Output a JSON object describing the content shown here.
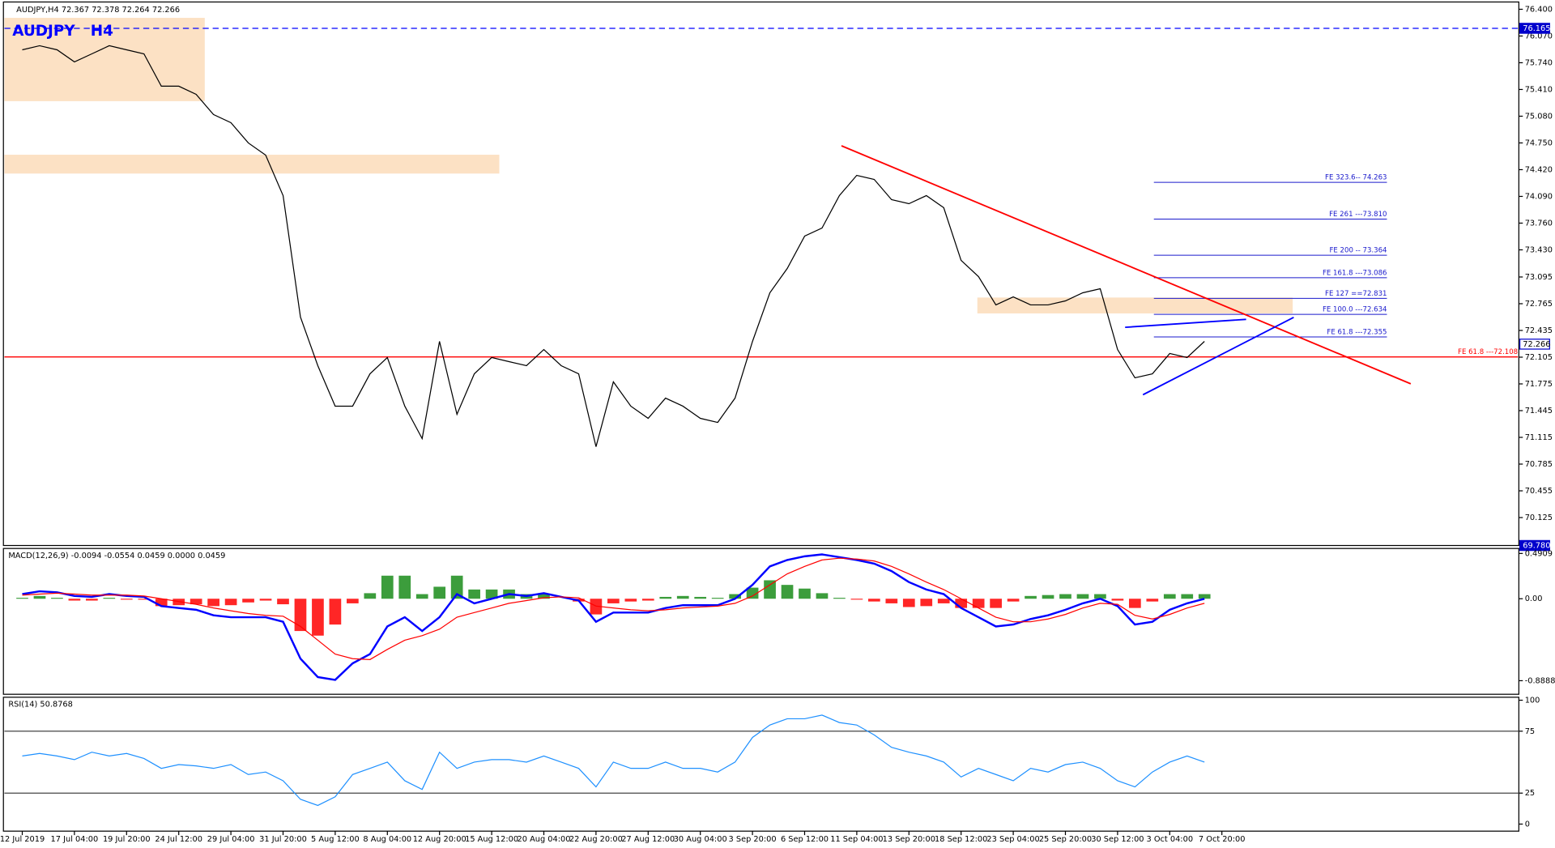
{
  "chart_data": [
    {
      "type": "line",
      "title": "AUDJPY,H4  72.367 72.378 72.264 72.266",
      "subtitle": "AUDJPY   H4",
      "series": [
        {
          "name": "AUDJPY",
          "color": "#000000",
          "values": [
            75.9,
            75.95,
            75.9,
            75.75,
            75.85,
            75.95,
            75.9,
            75.85,
            75.45,
            75.45,
            75.35,
            75.1,
            75.0,
            74.75,
            74.6,
            74.1,
            72.6,
            72.0,
            71.5,
            71.5,
            71.9,
            72.1,
            71.5,
            71.1,
            72.3,
            71.4,
            71.9,
            72.1,
            72.05,
            72.0,
            72.2,
            72.0,
            71.9,
            71.0,
            71.8,
            71.5,
            71.35,
            71.6,
            71.5,
            71.35,
            71.3,
            71.6,
            72.3,
            72.9,
            73.2,
            73.6,
            73.7,
            74.1,
            74.35,
            74.3,
            74.05,
            74.0,
            74.1,
            73.95,
            73.3,
            73.1,
            72.75,
            72.85,
            72.75,
            72.75,
            72.8,
            72.9,
            72.95,
            72.2,
            71.85,
            71.9,
            72.15,
            72.1,
            72.3,
            null
          ]
        }
      ],
      "ylim": [
        69.78,
        76.49
      ],
      "yticks": [
        {
          "value": 76.4,
          "label": "76.400"
        },
        {
          "value": 76.07,
          "label": "76.070"
        },
        {
          "value": 75.74,
          "label": "75.740"
        },
        {
          "value": 75.41,
          "label": "75.410"
        },
        {
          "value": 75.08,
          "label": "75.080"
        },
        {
          "value": 74.75,
          "label": "74.750"
        },
        {
          "value": 74.42,
          "label": "74.420"
        },
        {
          "value": 74.09,
          "label": "74.090"
        },
        {
          "value": 73.76,
          "label": "73.760"
        },
        {
          "value": 73.43,
          "label": "73.430"
        },
        73.095,
        72.765,
        72.435,
        72.105,
        71.775,
        71.445,
        71.115,
        70.785,
        70.455,
        70.125
      ],
      "price_tags": [
        76.165,
        72.266,
        {
          "value": 69.78,
          "label": "69.780"
        }
      ],
      "levels": [
        {
          "label": "FE 323.6-- 74.263",
          "value": 74.263,
          "color": "#1a1acc"
        },
        {
          "label": "FE 261 ---73.810",
          "value": 73.81,
          "color": "#1a1acc"
        },
        {
          "label": "FE 200 -- 73.364",
          "value": 73.364,
          "color": "#1a1acc"
        },
        {
          "label": "FE 161.8 ---73.086",
          "value": 73.086,
          "color": "#1a1acc"
        },
        {
          "label": "FE 127 ==72.831",
          "value": 72.831,
          "color": "#1a1acc"
        },
        {
          "label": "FE 100.0 ---72.634",
          "value": 72.634,
          "color": "#1a1acc"
        },
        {
          "label": "FE 61.8 ---72.355",
          "value": 72.355,
          "color": "#1a1acc"
        },
        {
          "label": "FE 61.8 ---72.108",
          "value": 72.108,
          "color": "#ff0000"
        }
      ]
    },
    {
      "type": "macd",
      "title": "MACD(12,26,9) -0.0094 -0.0554 0.0459 0.0000 0.0459",
      "series": [
        {
          "name": "MACD",
          "color": "#0000ff",
          "values": [
            0.05,
            0.08,
            0.07,
            0.03,
            0.02,
            0.05,
            0.03,
            0.02,
            -0.08,
            -0.1,
            -0.12,
            -0.18,
            -0.2,
            -0.2,
            -0.2,
            -0.25,
            -0.65,
            -0.85,
            -0.88,
            -0.7,
            -0.6,
            -0.3,
            -0.2,
            -0.35,
            -0.2,
            0.05,
            -0.05,
            0.0,
            0.05,
            0.03,
            0.06,
            0.02,
            -0.02,
            -0.25,
            -0.15,
            -0.15,
            -0.15,
            -0.1,
            -0.07,
            -0.07,
            -0.07,
            0.0,
            0.15,
            0.35,
            0.42,
            0.46,
            0.48,
            0.45,
            0.42,
            0.38,
            0.3,
            0.18,
            0.1,
            0.05,
            -0.1,
            -0.2,
            -0.3,
            -0.28,
            -0.22,
            -0.18,
            -0.12,
            -0.05,
            0.0,
            -0.08,
            -0.28,
            -0.25,
            -0.12,
            -0.05,
            0.0,
            null
          ]
        },
        {
          "name": "Signal",
          "color": "#ff0000",
          "values": [
            0.04,
            0.05,
            0.06,
            0.05,
            0.04,
            0.04,
            0.04,
            0.03,
            0.0,
            -0.03,
            -0.06,
            -0.1,
            -0.13,
            -0.16,
            -0.18,
            -0.19,
            -0.3,
            -0.45,
            -0.6,
            -0.65,
            -0.66,
            -0.55,
            -0.45,
            -0.4,
            -0.33,
            -0.2,
            -0.15,
            -0.1,
            -0.05,
            -0.02,
            0.01,
            0.02,
            0.01,
            -0.08,
            -0.1,
            -0.12,
            -0.13,
            -0.12,
            -0.1,
            -0.09,
            -0.08,
            -0.05,
            0.03,
            0.15,
            0.27,
            0.35,
            0.42,
            0.44,
            0.43,
            0.41,
            0.35,
            0.27,
            0.18,
            0.1,
            0.0,
            -0.1,
            -0.2,
            -0.25,
            -0.25,
            -0.22,
            -0.17,
            -0.1,
            -0.05,
            -0.06,
            -0.18,
            -0.22,
            -0.17,
            -0.1,
            -0.05,
            null
          ]
        }
      ],
      "histogram": {
        "positive_color": "#1a8c1a",
        "negative_color": "#ff0000",
        "values": [
          0.01,
          0.03,
          0.01,
          -0.02,
          -0.02,
          0.01,
          -0.01,
          -0.01,
          -0.08,
          -0.07,
          -0.06,
          -0.08,
          -0.07,
          -0.04,
          -0.02,
          -0.06,
          -0.35,
          -0.4,
          -0.28,
          -0.05,
          0.06,
          0.25,
          0.25,
          0.05,
          0.13,
          0.25,
          0.1,
          0.1,
          0.1,
          0.05,
          0.05,
          0,
          -0.03,
          -0.17,
          -0.05,
          -0.03,
          -0.02,
          0.02,
          0.03,
          0.02,
          0.01,
          0.05,
          0.12,
          0.2,
          0.15,
          0.11,
          0.06,
          0.01,
          -0.01,
          -0.03,
          -0.05,
          -0.09,
          -0.08,
          -0.05,
          -0.1,
          -0.1,
          -0.1,
          -0.03,
          0.03,
          0.04,
          0.05,
          0.05,
          0.05,
          -0.02,
          -0.1,
          -0.03,
          0.05,
          0.05,
          0.05,
          null
        ]
      },
      "ylim": [
        -1.036,
        0.545
      ],
      "yticks": [
        0.4909,
        {
          "value": 0,
          "label": "0.00"
        },
        -0.8888
      ]
    },
    {
      "type": "rsi",
      "title": "RSI(14) 50.8768",
      "series": [
        {
          "name": "RSI",
          "color": "#1e90ff",
          "values": [
            55,
            57,
            55,
            52,
            58,
            55,
            57,
            53,
            45,
            48,
            47,
            45,
            48,
            40,
            42,
            35,
            20,
            15,
            22,
            40,
            45,
            50,
            35,
            28,
            58,
            45,
            50,
            52,
            52,
            50,
            55,
            50,
            45,
            30,
            50,
            45,
            45,
            50,
            45,
            45,
            42,
            50,
            70,
            80,
            85,
            85,
            88,
            82,
            80,
            72,
            62,
            58,
            55,
            50,
            38,
            45,
            40,
            35,
            45,
            42,
            48,
            50,
            45,
            35,
            30,
            42,
            50,
            55,
            50,
            null
          ]
        }
      ],
      "ylim": [
        -5.7,
        102.4
      ],
      "yticks": [
        100,
        75,
        25,
        0
      ],
      "categories": [
        "12 Jul 2019",
        null,
        null,
        "17 Jul 04:00",
        null,
        null,
        "19 Jul 20:00",
        null,
        null,
        "24 Jul 12:00",
        null,
        null,
        "29 Jul 04:00",
        null,
        null,
        "31 Jul 20:00",
        null,
        null,
        "5 Aug 12:00",
        null,
        null,
        "8 Aug 04:00",
        null,
        null,
        "12 Aug 20:00",
        null,
        null,
        "15 Aug 12:00",
        null,
        null,
        "20 Aug 04:00",
        null,
        null,
        "22 Aug 20:00",
        null,
        null,
        "27 Aug 12:00",
        null,
        null,
        "30 Aug 04:00",
        null,
        null,
        "3 Sep 20:00",
        null,
        null,
        "6 Sep 12:00",
        null,
        null,
        "11 Sep 04:00",
        null,
        null,
        "13 Sep 20:00",
        null,
        null,
        "18 Sep 12:00",
        null,
        null,
        "23 Sep 04:00",
        null,
        null,
        "25 Sep 20:00",
        null,
        null,
        "30 Sep 12:00",
        null,
        null,
        "3 Oct 04:00",
        null,
        null,
        "7 Oct 20:00"
      ]
    }
  ]
}
